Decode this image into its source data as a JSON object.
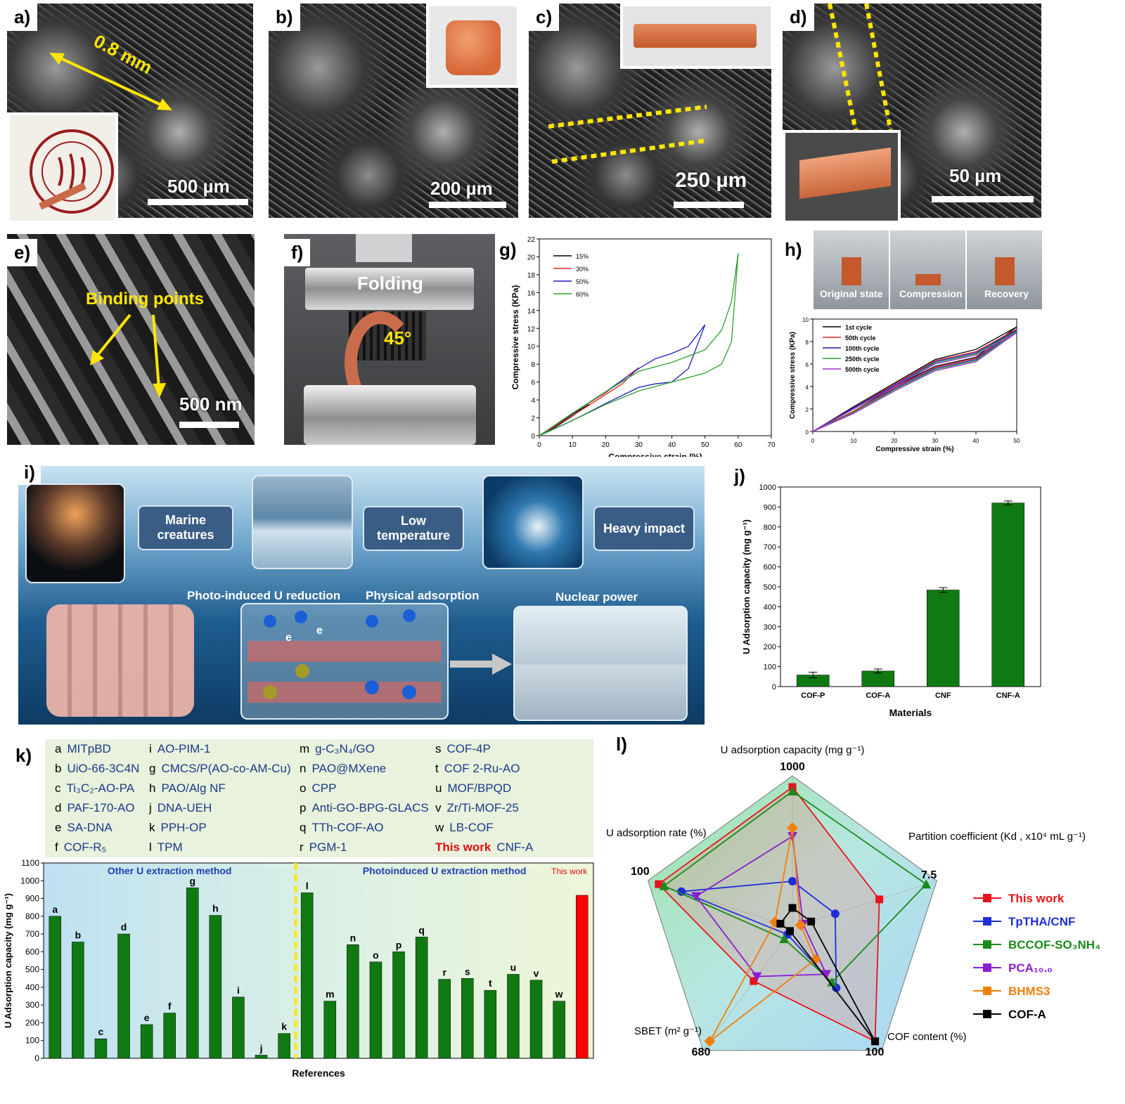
{
  "panels": {
    "a": {
      "label": "a)",
      "annotation": "0.8 mm",
      "scalebar": "500 µm"
    },
    "b": {
      "label": "b)",
      "scalebar": "200 µm"
    },
    "c": {
      "label": "c)",
      "scalebar": "250 µm"
    },
    "d": {
      "label": "d)",
      "scalebar": "50 µm"
    },
    "e": {
      "label": "e)",
      "annotation": "Binding points",
      "scalebar": "500 nm"
    },
    "f": {
      "label": "f)",
      "title": "Folding",
      "angle": "45°"
    },
    "g": {
      "label": "g)"
    },
    "h": {
      "label": "h)",
      "photo_captions": [
        "Original state",
        "Compression",
        "Recovery"
      ]
    },
    "i": {
      "label": "i)",
      "nodes": [
        "Marine creatures",
        "Low temperature",
        "Heavy impact"
      ],
      "captions": [
        "Photo-induced U reduction",
        "Physical adsorption",
        "Nuclear power"
      ],
      "electron": "e"
    },
    "j": {
      "label": "j)"
    },
    "k": {
      "label": "k)"
    },
    "l": {
      "label": "l)"
    }
  },
  "chart_data": [
    {
      "id": "g",
      "type": "line",
      "xlabel": "Compressive strain (%)",
      "ylabel": "Compressive stress (KPa)",
      "xlim": [
        0,
        70
      ],
      "ylim": [
        0,
        22
      ],
      "xticks": [
        0,
        10,
        20,
        30,
        40,
        50,
        60,
        70
      ],
      "yticks": [
        0,
        2,
        4,
        6,
        8,
        10,
        12,
        14,
        16,
        18,
        20,
        22
      ],
      "legend_position": "top-left",
      "series": [
        {
          "name": "15%",
          "color": "#000000",
          "x": [
            0,
            5,
            10,
            15,
            10,
            5,
            0
          ],
          "y": [
            0,
            1.2,
            2.4,
            3.5,
            2.2,
            1.0,
            0
          ]
        },
        {
          "name": "30%",
          "color": "#d62728",
          "x": [
            0,
            10,
            20,
            30,
            25,
            15,
            5,
            0
          ],
          "y": [
            0,
            2.5,
            4.8,
            7.6,
            5.8,
            3.4,
            1.1,
            0
          ]
        },
        {
          "name": "50%",
          "color": "#1f1fbf",
          "x": [
            0,
            10,
            20,
            30,
            35,
            40,
            45,
            50,
            45,
            40,
            35,
            30,
            20,
            10,
            0
          ],
          "y": [
            0,
            2.5,
            4.9,
            7.5,
            8.6,
            9.2,
            10.0,
            12.4,
            7.5,
            6.0,
            5.8,
            5.4,
            3.6,
            1.7,
            0
          ]
        },
        {
          "name": "60%",
          "color": "#2ca02c",
          "x": [
            0,
            10,
            20,
            30,
            40,
            50,
            55,
            58,
            60,
            58,
            55,
            50,
            40,
            30,
            20,
            10,
            0
          ],
          "y": [
            0,
            2.5,
            4.9,
            7.2,
            8.2,
            9.6,
            11.8,
            15.0,
            20.4,
            10.5,
            8.0,
            7.0,
            6.0,
            5.0,
            3.5,
            1.7,
            0
          ]
        }
      ]
    },
    {
      "id": "h",
      "type": "line",
      "xlabel": "Compressive strain (%)",
      "ylabel": "Compressive stress (KPa)",
      "xlim": [
        0,
        50
      ],
      "ylim": [
        0,
        10
      ],
      "xticks": [
        0,
        10,
        20,
        30,
        40,
        50
      ],
      "yticks": [
        0,
        2,
        4,
        6,
        8,
        10
      ],
      "legend_position": "top-left",
      "series": [
        {
          "name": "1st cycle",
          "color": "#000000",
          "x": [
            0,
            10,
            20,
            30,
            40,
            50,
            40,
            30,
            20,
            10,
            0
          ],
          "y": [
            0,
            2.2,
            4.3,
            6.4,
            7.3,
            9.3,
            6.6,
            5.8,
            4.0,
            1.8,
            0
          ]
        },
        {
          "name": "50th cycle",
          "color": "#d62728",
          "x": [
            0,
            10,
            20,
            30,
            40,
            50,
            40,
            30,
            20,
            10,
            0
          ],
          "y": [
            0,
            2.1,
            4.2,
            6.3,
            7.1,
            9.1,
            6.5,
            5.7,
            3.9,
            1.8,
            0
          ]
        },
        {
          "name": "100th cycle",
          "color": "#1f1fbf",
          "x": [
            0,
            10,
            20,
            30,
            40,
            50,
            40,
            30,
            20,
            10,
            0
          ],
          "y": [
            0,
            2.1,
            4.1,
            6.2,
            7.0,
            9.0,
            6.4,
            5.6,
            3.8,
            1.7,
            0
          ]
        },
        {
          "name": "250th cycle",
          "color": "#2ca02c",
          "x": [
            0,
            10,
            20,
            30,
            40,
            50,
            40,
            30,
            20,
            10,
            0
          ],
          "y": [
            0,
            2.0,
            4.0,
            6.1,
            6.9,
            8.9,
            6.3,
            5.5,
            3.7,
            1.7,
            0
          ]
        },
        {
          "name": "500th cycle",
          "color": "#9b30d0",
          "x": [
            0,
            10,
            20,
            30,
            40,
            50,
            40,
            30,
            20,
            10,
            0
          ],
          "y": [
            0,
            2.0,
            4.0,
            6.0,
            6.8,
            8.8,
            6.2,
            5.4,
            3.6,
            1.6,
            0
          ]
        }
      ]
    },
    {
      "id": "j",
      "type": "bar",
      "xlabel": "Materials",
      "ylabel": "U Adsorption capacity (mg g⁻¹)",
      "ylim": [
        0,
        1000
      ],
      "yticks": [
        0,
        100,
        200,
        300,
        400,
        500,
        600,
        700,
        800,
        900,
        1000
      ],
      "categories": [
        "COF-P",
        "COF-A",
        "CNF",
        "CNF-A"
      ],
      "values": [
        58,
        78,
        484,
        920
      ],
      "errors": [
        14,
        10,
        12,
        10
      ],
      "color": "#0f7a12"
    },
    {
      "id": "k",
      "type": "bar",
      "xlabel": "References",
      "ylabel": "U Adsorption capacity (mg g⁻¹)",
      "ylim": [
        0,
        1100
      ],
      "yticks": [
        0,
        100,
        200,
        300,
        400,
        500,
        600,
        700,
        800,
        900,
        1000,
        1100
      ],
      "section_labels": [
        "Other U extraction method",
        "Photoinduced U extraction method"
      ],
      "highlight_label": "This work",
      "categories": [
        "a",
        "b",
        "c",
        "d",
        "e",
        "f",
        "g",
        "h",
        "i",
        "j",
        "k",
        "l",
        "m",
        "n",
        "o",
        "p",
        "q",
        "r",
        "s",
        "t",
        "u",
        "v",
        "w",
        "This work"
      ],
      "values": [
        800,
        655,
        110,
        700,
        190,
        255,
        960,
        805,
        345,
        18,
        140,
        932,
        322,
        640,
        543,
        600,
        683,
        445,
        450,
        383,
        473,
        440,
        322,
        918
      ],
      "legend": [
        {
          "letter": "a",
          "name": "MITpBD"
        },
        {
          "letter": "b",
          "name": "UiO-66-3C4N"
        },
        {
          "letter": "c",
          "name": "Ti₃C₂-AO-PA"
        },
        {
          "letter": "d",
          "name": "PAF-170-AO"
        },
        {
          "letter": "e",
          "name": "SA-DNA"
        },
        {
          "letter": "f",
          "name": "COF-R₅"
        },
        {
          "letter": "i",
          "name": "AO-PIM-1"
        },
        {
          "letter": "g",
          "name": "CMCS/P(AO-co-AM-Cu)"
        },
        {
          "letter": "h",
          "name": "PAO/Alg NF"
        },
        {
          "letter": "j",
          "name": "DNA-UEH"
        },
        {
          "letter": "k",
          "name": "PPH-OP"
        },
        {
          "letter": "l",
          "name": "TPM"
        },
        {
          "letter": "m",
          "name": "g-C₃N₄/GO"
        },
        {
          "letter": "n",
          "name": "PAO@MXene"
        },
        {
          "letter": "o",
          "name": "CPP"
        },
        {
          "letter": "p",
          "name": "Anti-GO-BPG-GLACS"
        },
        {
          "letter": "q",
          "name": "TTh-COF-AO"
        },
        {
          "letter": "r",
          "name": "PGM-1"
        },
        {
          "letter": "s",
          "name": "COF-4P"
        },
        {
          "letter": "t",
          "name": "COF 2-Ru-AO"
        },
        {
          "letter": "u",
          "name": "MOF/BPQD"
        },
        {
          "letter": "v",
          "name": "Zr/Ti-MOF-25"
        },
        {
          "letter": "w",
          "name": "LB-COF"
        },
        {
          "letter": "This work",
          "name": "CNF-A"
        }
      ]
    },
    {
      "id": "l",
      "type": "radar",
      "axes": [
        {
          "label": "U adsorption capacity (mg g⁻¹)",
          "max": "1000"
        },
        {
          "label": "Partition coefficient (Kd , x10⁴ mL g⁻¹)",
          "max": "7.5"
        },
        {
          "label": "COF content (%)",
          "max": "100"
        },
        {
          "label": "SBET (m² g⁻¹)",
          "max": "680"
        },
        {
          "label": "U adsorption rate (%)",
          "max": "100"
        }
      ],
      "series": [
        {
          "name": "This work",
          "color": "#e8141a",
          "marker": "square",
          "values": [
            1.0,
            0.65,
            1.0,
            0.47,
            1.0
          ]
        },
        {
          "name": "TpTHA/CNF",
          "color": "#1f2fd6",
          "marker": "circle",
          "values": [
            0.33,
            0.32,
            0.53,
            0.06,
            0.83
          ]
        },
        {
          "name": "BCCOF-SO₃NH₄",
          "color": "#1a8a1a",
          "marker": "triangle-up",
          "values": [
            0.97,
            1.0,
            0.48,
            0.1,
            0.96
          ]
        },
        {
          "name": "PCA₁₀.₀",
          "color": "#8a1ed0",
          "marker": "triangle-down",
          "values": [
            0.65,
            0.08,
            0.41,
            0.43,
            0.72
          ]
        },
        {
          "name": "BHMS3",
          "color": "#f07f0a",
          "marker": "diamond",
          "values": [
            0.71,
            0.06,
            0.28,
            1.0,
            0.13
          ]
        },
        {
          "name": "COF-A",
          "color": "#000000",
          "marker": "square",
          "values": [
            0.14,
            0.14,
            1.0,
            0.03,
            0.09
          ]
        }
      ]
    }
  ]
}
